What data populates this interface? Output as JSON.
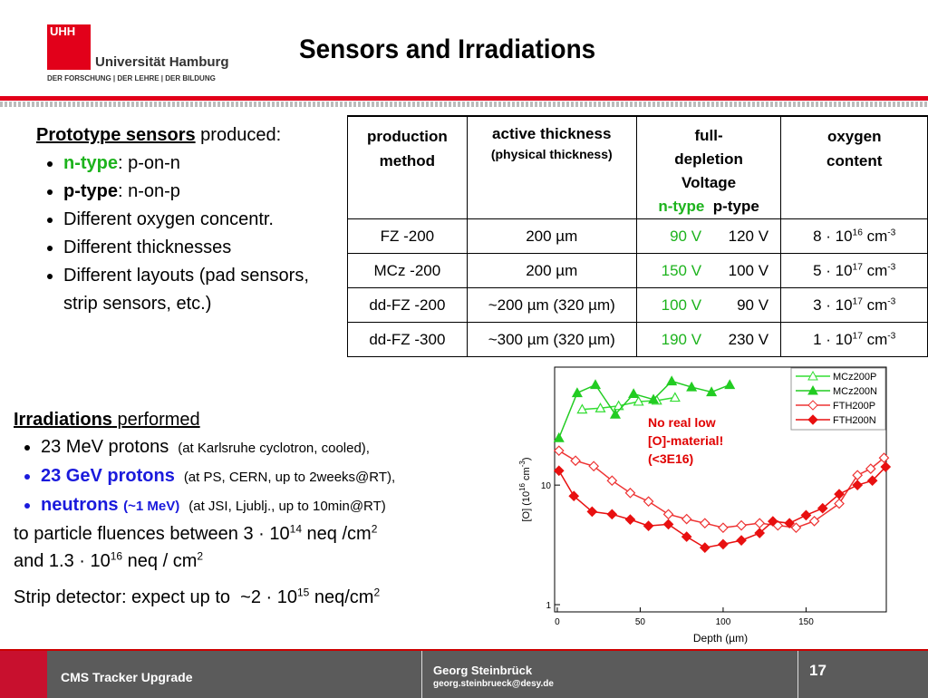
{
  "header": {
    "logo": "UHH",
    "university": "Universität Hamburg",
    "motto": "DER FORSCHUNG | DER LEHRE | DER BILDUNG",
    "title": "Sensors and Irradiations"
  },
  "prototypes": {
    "heading": "Prototype sensors",
    "heading_rest": " produced:",
    "items": [
      {
        "bold": "n-type",
        "rest": ": p-on-n"
      },
      {
        "bold": "p-type",
        "rest": ": n-on-p"
      },
      {
        "rest": "Different oxygen concentr."
      },
      {
        "rest": "Different thicknesses"
      },
      {
        "rest": "Different layouts (pad sensors, strip sensors, etc.)"
      }
    ]
  },
  "irradiations": {
    "heading": "Irradiations",
    "heading_rest": " performed",
    "items": [
      {
        "main": "23 MeV protons",
        "note": "(at Karlsruhe cyclotron, cooled),"
      },
      {
        "main": "23 GeV protons",
        "note": "(at PS, CERN, up to 2weeks@RT),"
      },
      {
        "main": "neutrons",
        "energy": "(~1 MeV)",
        "note": "(at JSI, Ljublj., up to 10min@RT)"
      }
    ],
    "fluence1": {
      "base": "to particle fluences between 3 · 10",
      "exp": "14",
      "unit": " neq /cm",
      "unit_exp": "2"
    },
    "fluence2": {
      "base": "and 1.3 · 10",
      "exp": "16",
      "unit": " neq / cm",
      "unit_exp": "2"
    },
    "strip": {
      "base": "Strip detector: expect up to  ~2 · 10",
      "exp": "15",
      "unit": " neq/cm",
      "unit_exp": "2"
    }
  },
  "table": {
    "header": {
      "method": "production method",
      "thickness": "active thickness",
      "thickness_sub": "(physical thickness)",
      "voltage": "full-depletion Voltage",
      "ntype": "n-type",
      "ptype": "p-type",
      "oxygen": "oxygen content"
    },
    "rows": [
      {
        "method": "FZ -200",
        "thickness": "200 µm",
        "vn": "90 V",
        "vp": "120 V",
        "ox": "8 · 10",
        "ox_exp": "16",
        "ox_unit": " cm",
        "ox_unit_exp": "-3"
      },
      {
        "method": "MCz -200",
        "thickness": "200 µm",
        "vn": "150 V",
        "vp": "100 V",
        "ox": "5 · 10",
        "ox_exp": "17",
        "ox_unit": " cm",
        "ox_unit_exp": "-3"
      },
      {
        "method": "dd-FZ -200",
        "thickness": "~200 µm (320 µm)",
        "vn": "100 V",
        "vp": "90 V",
        "ox": "3 · 10",
        "ox_exp": "17",
        "ox_unit": " cm",
        "ox_unit_exp": "-3"
      },
      {
        "method": "dd-FZ -300",
        "thickness": "~300 µm (320 µm)",
        "vn": "190 V",
        "vp": "230 V",
        "ox": "1 · 10",
        "ox_exp": "17",
        "ox_unit": " cm",
        "ox_unit_exp": "-3"
      }
    ]
  },
  "chart_data": {
    "type": "line",
    "log_y": true,
    "xlabel": "Depth (µm)",
    "ylabel": {
      "base": "[O] (10",
      "exp": "16",
      "unit": " cm",
      "unit_exp": "-3",
      "close": ")"
    },
    "annotation": [
      "No real low",
      "[O]-material!",
      "(<3E16)"
    ],
    "xlim": [
      -1.6,
      198.4
    ],
    "ylim": [
      0.87,
      97
    ],
    "xticks": [
      0,
      50,
      100,
      150
    ],
    "yticks": [
      1,
      10
    ],
    "series": [
      {
        "name": "MCz200P",
        "color": "#33dd33",
        "marker": "triangle",
        "filled": false,
        "x": [
          15,
          26,
          37,
          49,
          60,
          71
        ],
        "values": [
          43,
          44,
          46,
          50,
          51,
          54
        ]
      },
      {
        "name": "MCz200N",
        "color": "#22cc22",
        "marker": "triangle",
        "filled": true,
        "x": [
          1,
          12,
          23,
          35,
          46,
          58,
          69,
          81,
          93,
          104
        ],
        "values": [
          24.8,
          59,
          69,
          39,
          58,
          52,
          74,
          66,
          60,
          69
        ]
      },
      {
        "name": "FTH200P",
        "color": "#ee3333",
        "marker": "diamond",
        "filled": false,
        "x": [
          1,
          11,
          22,
          33,
          44,
          55,
          67,
          78,
          89,
          100,
          111,
          122,
          133,
          144,
          155,
          170,
          181,
          189,
          197
        ],
        "values": [
          19.4,
          16,
          14.4,
          10.9,
          8.6,
          7.3,
          5.7,
          5.2,
          4.8,
          4.4,
          4.6,
          4.8,
          4.6,
          4.4,
          5.0,
          7.0,
          12.1,
          13.7,
          16.9
        ]
      },
      {
        "name": "FTH200N",
        "color": "#e81010",
        "marker": "diamond",
        "filled": true,
        "x": [
          1,
          10,
          21,
          33,
          44,
          55,
          67,
          78,
          89,
          100,
          111,
          122,
          130,
          140,
          150,
          160,
          170,
          181,
          190,
          198
        ],
        "values": [
          13.2,
          8.1,
          6.0,
          5.7,
          5.15,
          4.56,
          4.7,
          3.7,
          3.0,
          3.2,
          3.45,
          3.97,
          4.98,
          4.8,
          5.6,
          6.4,
          8.4,
          10,
          10.9,
          14.2
        ]
      }
    ]
  },
  "footer": {
    "left": "CMS Tracker Upgrade",
    "author": "Georg Steinbrück",
    "email": "georg.steinbrueck@desy.de",
    "page": "17"
  }
}
